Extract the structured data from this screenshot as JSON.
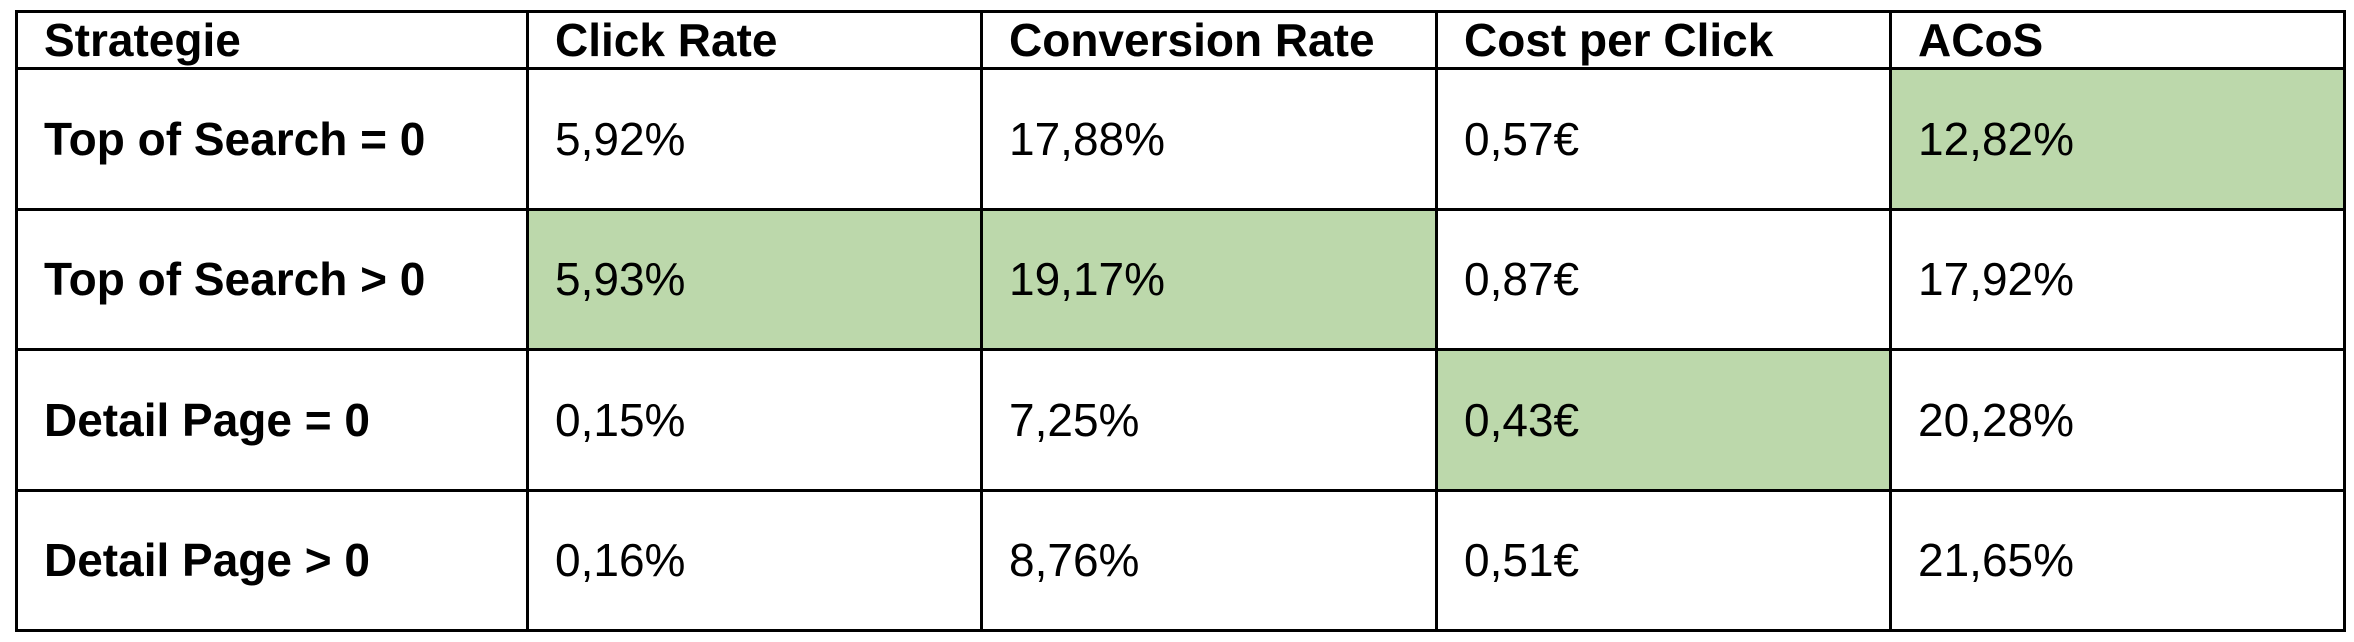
{
  "table": {
    "headers": [
      "Strategie",
      "Click Rate",
      "Conversion Rate",
      "Cost per Click",
      "ACoS"
    ],
    "rows": [
      {
        "label": "Top of Search = 0",
        "values": [
          "5,92%",
          "17,88%",
          "0,57€",
          "12,82%"
        ],
        "highlight": [
          false,
          false,
          false,
          true
        ]
      },
      {
        "label": "Top of Search > 0",
        "values": [
          "5,93%",
          "19,17%",
          "0,87€",
          "17,92%"
        ],
        "highlight": [
          true,
          true,
          false,
          false
        ]
      },
      {
        "label": "Detail Page = 0",
        "values": [
          "0,15%",
          "7,25%",
          "0,43€",
          "20,28%"
        ],
        "highlight": [
          false,
          false,
          true,
          false
        ]
      },
      {
        "label": "Detail Page > 0",
        "values": [
          "0,16%",
          "8,76%",
          "0,51€",
          "21,65%"
        ],
        "highlight": [
          false,
          false,
          false,
          false
        ]
      }
    ]
  },
  "colors": {
    "highlight": "#bcd8ab",
    "border": "#000000",
    "background": "#ffffff"
  }
}
